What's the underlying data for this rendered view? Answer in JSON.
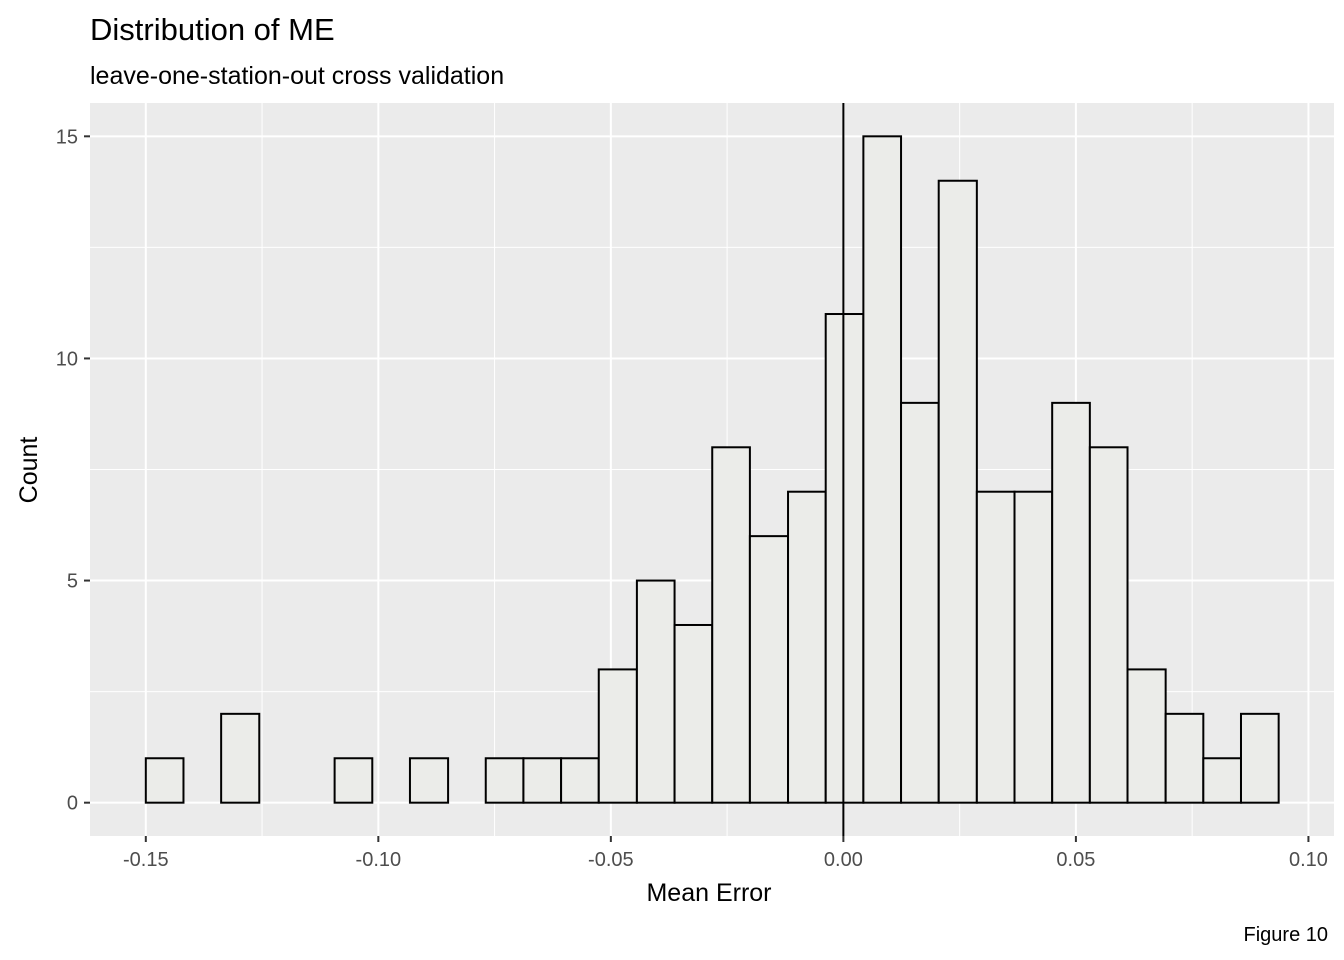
{
  "chart_data": {
    "type": "bar",
    "title": "Distribution of ME",
    "subtitle": "leave-one-station-out cross validation",
    "xlabel": "Mean Error",
    "ylabel": "Count",
    "caption": "Figure 10",
    "xlim": [
      -0.162,
      0.1055
    ],
    "ylim": [
      -0.75,
      15.75
    ],
    "x_ticks": [
      -0.15,
      -0.1,
      -0.05,
      0.0,
      0.05,
      0.1
    ],
    "x_tick_labels": [
      "-0.15",
      "-0.10",
      "-0.05",
      "0.00",
      "0.05",
      "0.10"
    ],
    "y_ticks": [
      0,
      5,
      10,
      15
    ],
    "y_tick_labels": [
      "0",
      "5",
      "10",
      "15"
    ],
    "vline_x": 0.0,
    "grid": true,
    "bins": [
      {
        "x0": -0.15,
        "x1": -0.1419,
        "count": 1
      },
      {
        "x0": -0.1419,
        "x1": -0.1338,
        "count": 0
      },
      {
        "x0": -0.1338,
        "x1": -0.1256,
        "count": 2
      },
      {
        "x0": -0.1256,
        "x1": -0.1175,
        "count": 0
      },
      {
        "x0": -0.1175,
        "x1": -0.1094,
        "count": 0
      },
      {
        "x0": -0.1094,
        "x1": -0.1013,
        "count": 1
      },
      {
        "x0": -0.1013,
        "x1": -0.0932,
        "count": 0
      },
      {
        "x0": -0.0932,
        "x1": -0.085,
        "count": 1
      },
      {
        "x0": -0.085,
        "x1": -0.0769,
        "count": 0
      },
      {
        "x0": -0.0769,
        "x1": -0.0688,
        "count": 1
      },
      {
        "x0": -0.0688,
        "x1": -0.0607,
        "count": 1
      },
      {
        "x0": -0.0607,
        "x1": -0.0526,
        "count": 1
      },
      {
        "x0": -0.0526,
        "x1": -0.0444,
        "count": 3
      },
      {
        "x0": -0.0444,
        "x1": -0.0363,
        "count": 5
      },
      {
        "x0": -0.0363,
        "x1": -0.0282,
        "count": 4
      },
      {
        "x0": -0.0282,
        "x1": -0.0201,
        "count": 8
      },
      {
        "x0": -0.0201,
        "x1": -0.0119,
        "count": 6
      },
      {
        "x0": -0.0119,
        "x1": -0.0038,
        "count": 7
      },
      {
        "x0": -0.0038,
        "x1": 0.0043,
        "count": 11
      },
      {
        "x0": 0.0043,
        "x1": 0.0124,
        "count": 15
      },
      {
        "x0": 0.0124,
        "x1": 0.0205,
        "count": 9
      },
      {
        "x0": 0.0205,
        "x1": 0.0287,
        "count": 14
      },
      {
        "x0": 0.0287,
        "x1": 0.0368,
        "count": 7
      },
      {
        "x0": 0.0368,
        "x1": 0.0449,
        "count": 7
      },
      {
        "x0": 0.0449,
        "x1": 0.053,
        "count": 9
      },
      {
        "x0": 0.053,
        "x1": 0.0611,
        "count": 8
      },
      {
        "x0": 0.0611,
        "x1": 0.0693,
        "count": 3
      },
      {
        "x0": 0.0693,
        "x1": 0.0774,
        "count": 2
      },
      {
        "x0": 0.0774,
        "x1": 0.0855,
        "count": 1
      },
      {
        "x0": 0.0855,
        "x1": 0.0936,
        "count": 2
      }
    ],
    "colors": {
      "panel_background": "#ebebeb",
      "grid_major": "#ffffff",
      "bar_fill": "#ebece9",
      "bar_outline": "#000000",
      "vline": "#000000"
    }
  }
}
